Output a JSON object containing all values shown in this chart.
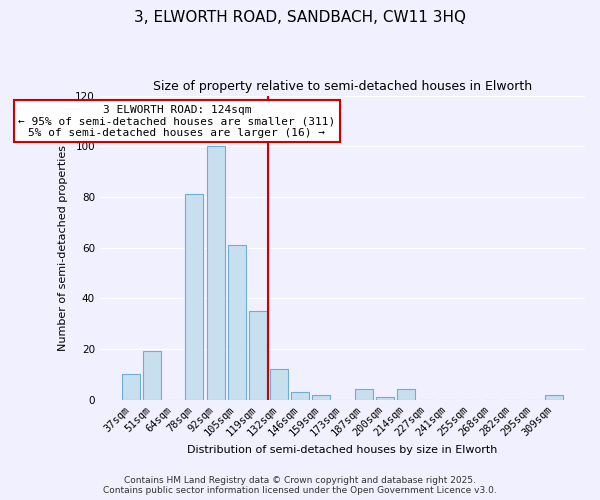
{
  "title": "3, ELWORTH ROAD, SANDBACH, CW11 3HQ",
  "subtitle": "Size of property relative to semi-detached houses in Elworth",
  "xlabel": "Distribution of semi-detached houses by size in Elworth",
  "ylabel": "Number of semi-detached properties",
  "bar_labels": [
    "37sqm",
    "51sqm",
    "64sqm",
    "78sqm",
    "92sqm",
    "105sqm",
    "119sqm",
    "132sqm",
    "146sqm",
    "159sqm",
    "173sqm",
    "187sqm",
    "200sqm",
    "214sqm",
    "227sqm",
    "241sqm",
    "255sqm",
    "268sqm",
    "282sqm",
    "295sqm",
    "309sqm"
  ],
  "bar_values": [
    10,
    19,
    0,
    81,
    100,
    61,
    35,
    12,
    3,
    2,
    0,
    4,
    1,
    4,
    0,
    0,
    0,
    0,
    0,
    0,
    2
  ],
  "bar_color": "#c8dff0",
  "bar_edge_color": "#6aafd6",
  "ylim": [
    0,
    120
  ],
  "yticks": [
    0,
    20,
    40,
    60,
    80,
    100,
    120
  ],
  "vline_index": 7,
  "vline_color": "#cc0000",
  "annotation_title": "3 ELWORTH ROAD: 124sqm",
  "annotation_line1": "← 95% of semi-detached houses are smaller (311)",
  "annotation_line2": "5% of semi-detached houses are larger (16) →",
  "annotation_box_color": "#ffffff",
  "annotation_box_edge": "#cc0000",
  "footer_line1": "Contains HM Land Registry data © Crown copyright and database right 2025.",
  "footer_line2": "Contains public sector information licensed under the Open Government Licence v3.0.",
  "background_color": "#f0f0ff",
  "grid_color": "#ffffff",
  "title_fontsize": 11,
  "subtitle_fontsize": 9,
  "xlabel_fontsize": 8,
  "ylabel_fontsize": 8,
  "tick_fontsize": 7.5,
  "footer_fontsize": 6.5,
  "annot_fontsize": 8
}
